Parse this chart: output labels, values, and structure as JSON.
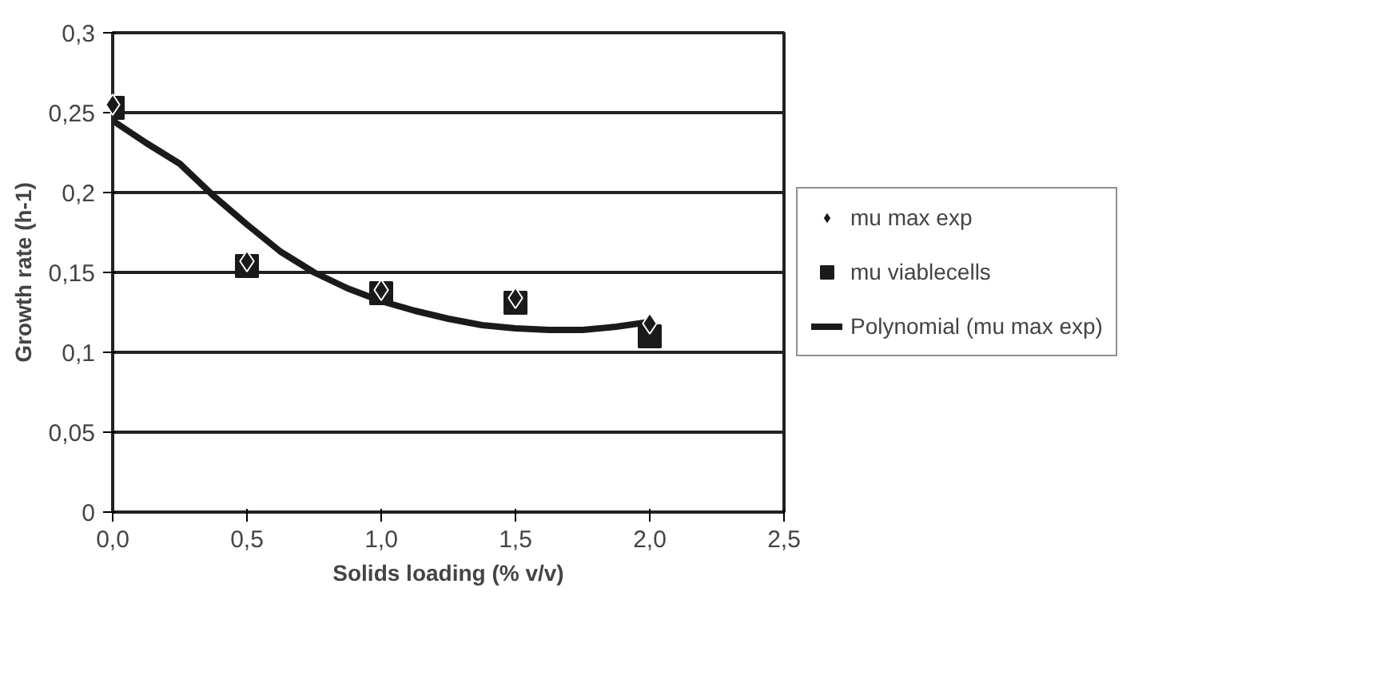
{
  "chart_data": {
    "type": "scatter",
    "xlabel": "Solids loading (% v/v)",
    "ylabel": "Growth rate (h-1)",
    "x": [
      0.0,
      0.5,
      1.0,
      1.5,
      2.0
    ],
    "series": [
      {
        "name": "mu max exp",
        "color": "#1a1a1a",
        "marker": "diamond",
        "values": [
          0.255,
          0.157,
          0.139,
          0.134,
          0.118
        ]
      },
      {
        "name": "mu viablecells",
        "color": "#1a1a1a",
        "marker": "square",
        "values": [
          0.253,
          0.154,
          0.137,
          0.131,
          0.11
        ]
      },
      {
        "name": "Polynomial (mu max exp)",
        "type": "line",
        "color": "#1a1a1a",
        "marker": "none",
        "x": [
          0.0,
          0.125,
          0.25,
          0.375,
          0.5,
          0.625,
          0.75,
          0.875,
          1.0,
          1.125,
          1.25,
          1.375,
          1.5,
          1.625,
          1.75,
          1.875,
          2.0
        ],
        "values": [
          0.245,
          0.231,
          0.218,
          0.198,
          0.18,
          0.163,
          0.15,
          0.14,
          0.132,
          0.126,
          0.121,
          0.117,
          0.115,
          0.114,
          0.114,
          0.116,
          0.119
        ]
      }
    ],
    "xlim": [
      0.0,
      2.5
    ],
    "xticks": [
      {
        "value": 0,
        "label": "0,0"
      },
      {
        "value": 0.5,
        "label": "0,5"
      },
      {
        "value": 1.0,
        "label": "1,0"
      },
      {
        "value": 1.5,
        "label": "1,5"
      },
      {
        "value": 2.0,
        "label": "2,0"
      },
      {
        "value": 2.5,
        "label": "2,5"
      }
    ],
    "ylim": [
      0,
      0.3
    ],
    "yticks": [
      0,
      {
        "value": 0.05,
        "label": "0,05"
      },
      {
        "value": 0.1,
        "label": "0,1"
      },
      {
        "value": 0.15,
        "label": "0,15"
      },
      {
        "value": 0.2,
        "label": "0,2"
      },
      {
        "value": 0.25,
        "label": "0,25"
      },
      {
        "value": 0.3,
        "label": "0,3"
      }
    ],
    "grid": "y",
    "legend": "right"
  }
}
